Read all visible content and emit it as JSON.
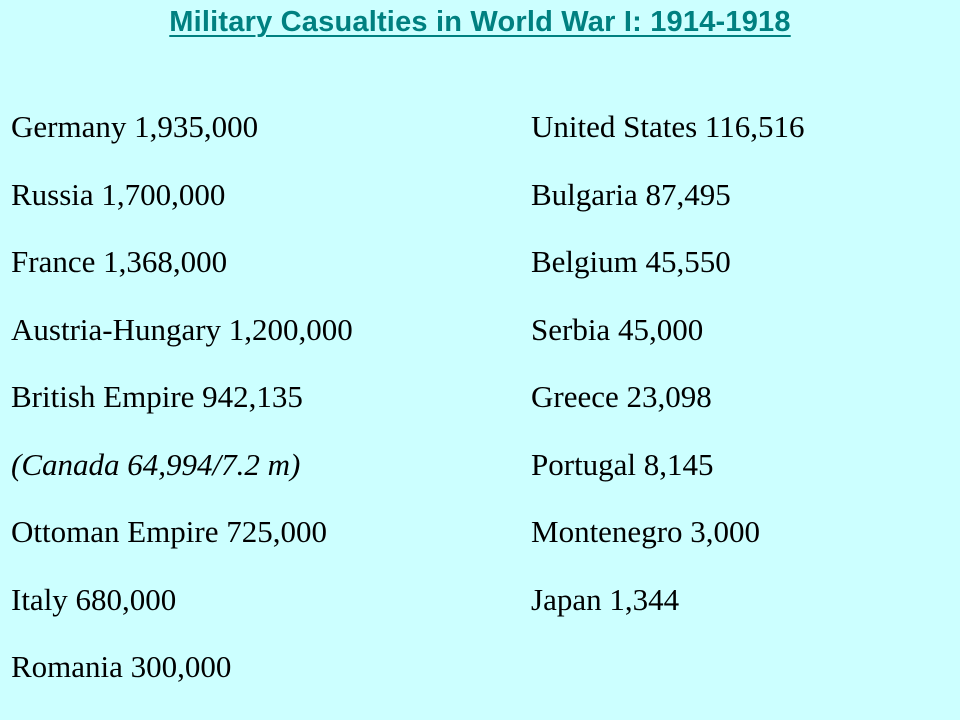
{
  "title": "Military Casualties in World War I: 1914-1918",
  "left_column": [
    {
      "text": "Germany 1,935,000"
    },
    {
      "text": "Russia 1,700,000"
    },
    {
      "text": "France 1,368,000"
    },
    {
      "text": "Austria-Hungary 1,200,000"
    },
    {
      "text": "British Empire 942,135"
    },
    {
      "text": "(Canada 64,994/7.2 m)"
    },
    {
      "text": "Ottoman Empire 725,000"
    },
    {
      "text": "Italy 680,000"
    },
    {
      "text": "Romania 300,000"
    }
  ],
  "right_column": [
    {
      "text": "United States 116,516"
    },
    {
      "text": "Bulgaria 87,495"
    },
    {
      "text": "Belgium 45,550"
    },
    {
      "text": "Serbia 45,000"
    },
    {
      "text": "Greece 23,098"
    },
    {
      "text": "Portugal 8,145"
    },
    {
      "text": "Montenegro 3,000"
    },
    {
      "text": "Japan 1,344"
    }
  ],
  "colors": {
    "background": "#ccffff",
    "title": "#008080",
    "text": "#000000"
  }
}
